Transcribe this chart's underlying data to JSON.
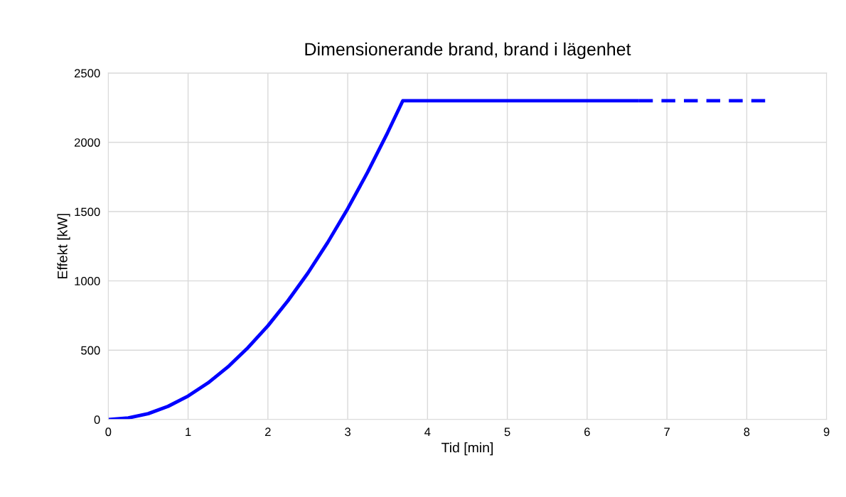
{
  "chart_data": {
    "type": "line",
    "title": "Dimensionerande brand, brand i lägenhet",
    "xlabel": "Tid [min]",
    "ylabel": "Effekt [kW]",
    "series": [
      {
        "color": "#0000ff",
        "line_style": "solid",
        "x": [
          0,
          0.25,
          0.5,
          0.75,
          1,
          1.25,
          1.5,
          1.75,
          2,
          2.25,
          2.5,
          2.75,
          3,
          3.25,
          3.5,
          3.69,
          6.65
        ],
        "values": [
          0,
          11,
          42,
          95,
          169,
          264,
          380,
          518,
          676,
          856,
          1056,
          1278,
          1521,
          1785,
          2070,
          2300,
          2300
        ]
      },
      {
        "color": "#0000ff",
        "line_style": "dashed",
        "x": [
          6.65,
          8.25
        ],
        "values": [
          2300,
          2300
        ]
      }
    ],
    "xlim": [
      0,
      9
    ],
    "xticks": [
      0,
      1,
      2,
      3,
      4,
      5,
      6,
      7,
      8,
      9
    ],
    "ylim": [
      0,
      2500
    ],
    "yticks": [
      0,
      500,
      1000,
      1500,
      2000,
      2500
    ],
    "grid": true,
    "marker": "none"
  }
}
